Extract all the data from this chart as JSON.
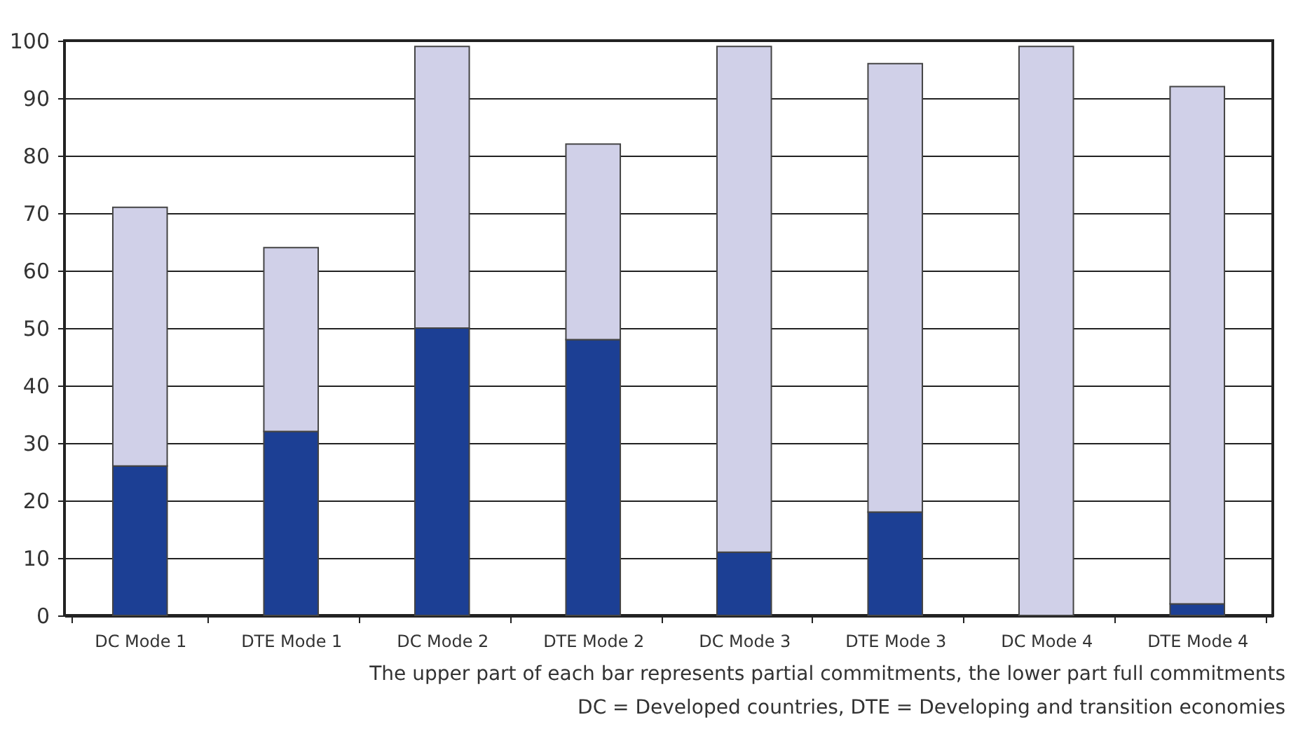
{
  "chart_data": {
    "type": "bar",
    "stacked": true,
    "categories": [
      "DC Mode 1",
      "DTE Mode 1",
      "DC Mode 2",
      "DTE Mode 2",
      "DC Mode 3",
      "DTE Mode 3",
      "DC Mode 4",
      "DTE Mode 4"
    ],
    "series": [
      {
        "color": "#1c3f94",
        "values": [
          26,
          32,
          50,
          48,
          11,
          18,
          0,
          2
        ]
      },
      {
        "color": "#d0d0e8",
        "values": [
          45,
          32,
          49,
          34,
          88,
          78,
          99,
          90
        ]
      }
    ],
    "ylim": [
      0,
      100
    ],
    "yticks": [
      0,
      10,
      20,
      30,
      40,
      50,
      60,
      70,
      80,
      90,
      100
    ],
    "grid": "y",
    "legend": false,
    "annotations": [
      "The upper part of each bar represents partial commitments, the lower part full commitments",
      "DC = Developed countries, DTE = Developing and transition economies"
    ]
  }
}
